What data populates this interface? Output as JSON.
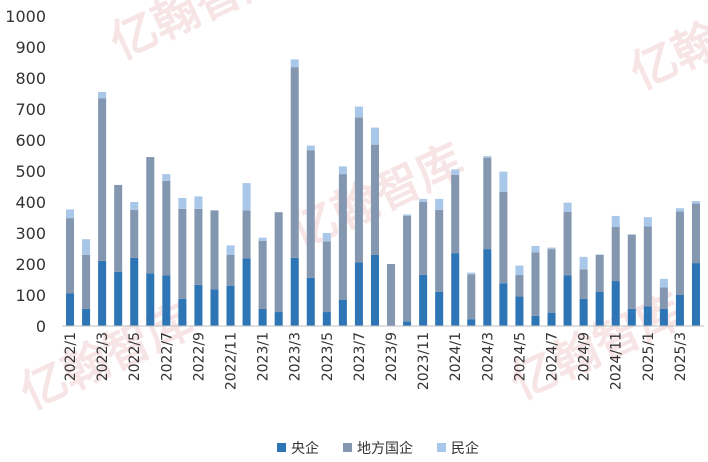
{
  "chart_data": {
    "type": "bar",
    "stacked": true,
    "ylim": [
      0,
      1000
    ],
    "yticks": [
      0,
      100,
      200,
      300,
      400,
      500,
      600,
      700,
      800,
      900,
      1000
    ],
    "categories": [
      "2022/1",
      "2022/2",
      "2022/3",
      "2022/4",
      "2022/5",
      "2022/6",
      "2022/7",
      "2022/8",
      "2022/9",
      "2022/10",
      "2022/11",
      "2022/12",
      "2023/1",
      "2023/2",
      "2023/3",
      "2023/4",
      "2023/5",
      "2023/6",
      "2023/7",
      "2023/8",
      "2023/9",
      "2023/10",
      "2023/11",
      "2023/12",
      "2024/1",
      "2024/2",
      "2024/3",
      "2024/4",
      "2024/5",
      "2024/6",
      "2024/7",
      "2024/8",
      "2024/9",
      "2024/10",
      "2024/11",
      "2024/12",
      "2025/1",
      "2025/2",
      "2025/3",
      "2025/4"
    ],
    "xtick_labels": [
      "2022/1",
      "",
      "2022/3",
      "",
      "2022/5",
      "",
      "2022/7",
      "",
      "2022/9",
      "",
      "2022/11",
      "",
      "2023/1",
      "",
      "2023/3",
      "",
      "2023/5",
      "",
      "2023/7",
      "",
      "2023/9",
      "",
      "2023/11",
      "",
      "2024/1",
      "",
      "2024/3",
      "",
      "2024/5",
      "",
      "2024/7",
      "",
      "2024/9",
      "",
      "2024/11",
      "",
      "2025/1",
      "",
      "2025/3",
      ""
    ],
    "series": [
      {
        "name": "央企",
        "color": "#2e75b6",
        "values": [
          105,
          55,
          210,
          175,
          220,
          170,
          163,
          88,
          133,
          118,
          130,
          218,
          55,
          45,
          220,
          155,
          45,
          85,
          205,
          230,
          0,
          15,
          165,
          110,
          235,
          22,
          248,
          138,
          95,
          33,
          43,
          163,
          88,
          110,
          145,
          55,
          63,
          55,
          100,
          203
        ]
      },
      {
        "name": "地方国企",
        "color": "#8497b0",
        "values": [
          243,
          175,
          525,
          280,
          155,
          375,
          305,
          290,
          245,
          255,
          100,
          155,
          220,
          322,
          615,
          412,
          228,
          405,
          468,
          355,
          200,
          340,
          235,
          265,
          253,
          145,
          295,
          295,
          70,
          205,
          205,
          205,
          95,
          120,
          175,
          240,
          258,
          70,
          270,
          192
        ]
      },
      {
        "name": "民企",
        "color": "#a9c7e8",
        "values": [
          28,
          50,
          20,
          0,
          25,
          0,
          22,
          35,
          40,
          0,
          30,
          88,
          10,
          0,
          25,
          15,
          27,
          25,
          35,
          55,
          0,
          5,
          10,
          35,
          17,
          5,
          5,
          65,
          30,
          20,
          5,
          30,
          40,
          0,
          35,
          0,
          30,
          27,
          10,
          8
        ]
      }
    ]
  },
  "watermark": "亿翰智库"
}
